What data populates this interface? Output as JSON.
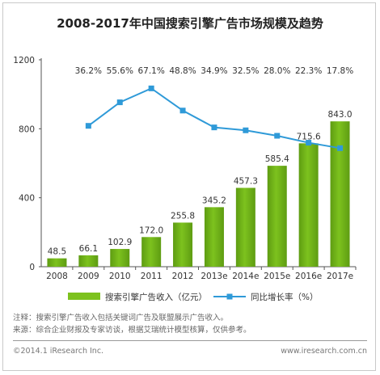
{
  "title": "2008-2017年中国搜索引擎广告市场规模及趋势",
  "chart_data": {
    "type": "bar",
    "categories": [
      "2008",
      "2009",
      "2010",
      "2011",
      "2012",
      "2013e",
      "2014e",
      "2015e",
      "2016e",
      "2017e"
    ],
    "series": [
      {
        "name": "搜索引擎广告收入（亿元）",
        "type": "bar",
        "values": [
          48.5,
          66.1,
          102.9,
          172.0,
          255.8,
          345.2,
          457.3,
          585.4,
          715.6,
          843.0
        ],
        "labels": [
          "48.5",
          "66.1",
          "102.9",
          "172.0",
          "255.8",
          "345.2",
          "457.3",
          "585.4",
          "715.6",
          "843.0"
        ]
      },
      {
        "name": "同比增长率（%）",
        "type": "line",
        "values": [
          null,
          36.2,
          55.6,
          67.1,
          48.8,
          34.9,
          32.5,
          28.0,
          22.3,
          17.8
        ],
        "labels": [
          "",
          "36.2%",
          "55.6%",
          "67.1%",
          "48.8%",
          "34.9%",
          "32.5%",
          "28.0%",
          "22.3%",
          "17.8%"
        ]
      }
    ],
    "y_ticks": [
      "0",
      "400",
      "800",
      "1200"
    ],
    "ylim": [
      0,
      1200
    ],
    "legend_position": "bottom",
    "grid": false,
    "colors": {
      "bar": "#7dc21e",
      "bar_dark": "#5e9c12",
      "line": "#2f9ad8",
      "marker": "#2f9ad8"
    }
  },
  "notes": {
    "note_label": "注释：",
    "note_text": "搜索引擎广告收入包括关键词广告及联盟展示广告收入。",
    "source_label": "来源：",
    "source_text": "综合企业财报及专家访谈，根据艾瑞统计模型核算，仅供参考。"
  },
  "footer": {
    "copyright": "©2014.1 iResearch Inc.",
    "website": "www.iresearch.com.cn"
  }
}
